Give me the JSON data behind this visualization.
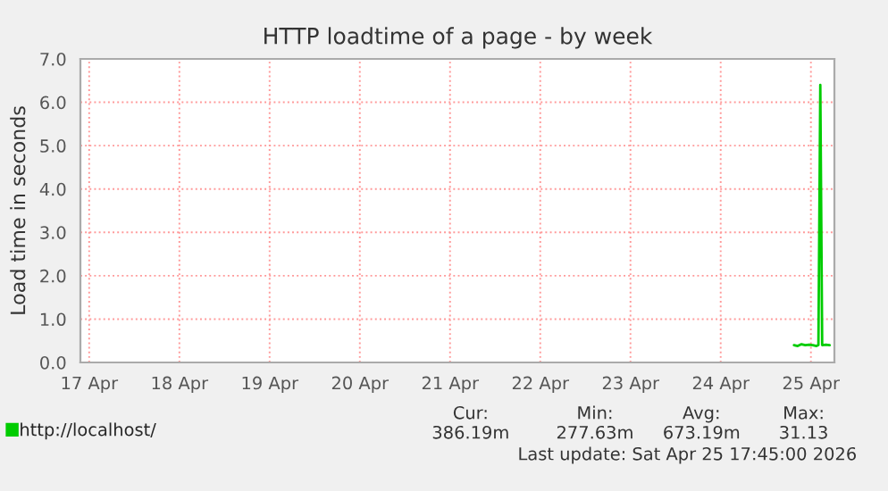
{
  "chart_data": {
    "type": "line",
    "title": "HTTP loadtime of a page - by week",
    "ylabel": "Load time in seconds",
    "series": [
      {
        "name": "http://localhost/",
        "color": "#00cc00",
        "x": [
          "2026-04-24T19:30",
          "2026-04-24T20:30",
          "2026-04-24T21:30",
          "2026-04-24T22:30",
          "2026-04-24T23:30",
          "2026-04-25T00:30",
          "2026-04-25T01:30",
          "2026-04-25T02:00",
          "2026-04-25T02:30",
          "2026-04-25T03:00",
          "2026-04-25T04:00",
          "2026-04-25T05:00"
        ],
        "values": [
          0.4,
          0.38,
          0.42,
          0.4,
          0.41,
          0.4,
          0.38,
          0.4,
          6.4,
          0.4,
          0.41,
          0.4
        ]
      }
    ],
    "xlim": [
      "2026-04-16T21:40",
      "2026-04-25T06:15"
    ],
    "xticks": [
      {
        "value": "2026-04-17",
        "label": "17 Apr"
      },
      {
        "value": "2026-04-18",
        "label": "18 Apr"
      },
      {
        "value": "2026-04-19",
        "label": "19 Apr"
      },
      {
        "value": "2026-04-20",
        "label": "20 Apr"
      },
      {
        "value": "2026-04-21",
        "label": "21 Apr"
      },
      {
        "value": "2026-04-22",
        "label": "22 Apr"
      },
      {
        "value": "2026-04-23",
        "label": "23 Apr"
      },
      {
        "value": "2026-04-24",
        "label": "24 Apr"
      },
      {
        "value": "2026-04-25",
        "label": "25 Apr"
      }
    ],
    "ylim": [
      0,
      7
    ],
    "yticks": [
      {
        "value": 0,
        "label": "0.0"
      },
      {
        "value": 1,
        "label": "1.0"
      },
      {
        "value": 2,
        "label": "2.0"
      },
      {
        "value": 3,
        "label": "3.0"
      },
      {
        "value": 4,
        "label": "4.0"
      },
      {
        "value": 5,
        "label": "5.0"
      },
      {
        "value": 6,
        "label": "6.0"
      },
      {
        "value": 7,
        "label": "7.0"
      }
    ],
    "grid": true,
    "legend": "bottom left",
    "annotations": [
      "Cur:",
      "Min:",
      "Avg:",
      "Max:",
      "386.19m",
      "277.63m",
      "673.19m",
      "31.13",
      "Last update: Sat Apr 25 17:45:00 2026"
    ]
  }
}
